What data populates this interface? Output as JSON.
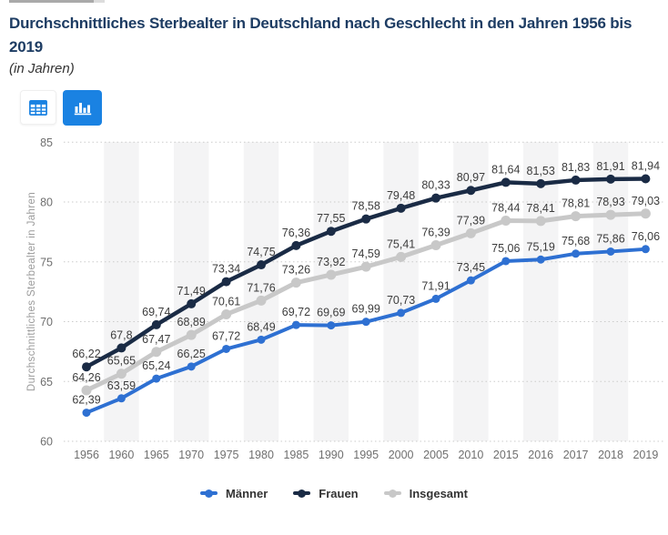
{
  "header": {
    "title": "Durchschnittliches Sterbealter in Deutschland nach Geschlecht in den Jahren 1956 bis 2019",
    "subtitle": "(in Jahren)"
  },
  "toolbar": {
    "table_button": {
      "icon": "table-grid-icon",
      "active": false
    },
    "chart_button": {
      "icon": "bar-chart-icon",
      "active": true
    }
  },
  "colors": {
    "accent_blue": "#1a82e2",
    "title_text": "#1d3c63",
    "grid_line": "#cbcbcb",
    "column_stripe": "#f4f4f5",
    "tick_text": "#6f6f6f",
    "data_label": "#3d3d3d",
    "maenner_blue": "#2e70d2",
    "frauen_navy": "#1a2b45",
    "insgesamt_gray": "#c8c8c8"
  },
  "chart_data": {
    "type": "line",
    "title": "Durchschnittliches Sterbealter in Deutschland nach Geschlecht in den Jahren 1956 bis 2019",
    "xlabel": "",
    "ylabel": "Durchschnittliches Sterbealter in Jahren",
    "ylim": [
      60,
      85
    ],
    "yticks": [
      60,
      65,
      70,
      75,
      80,
      85
    ],
    "grid": "horizontal-dotted",
    "column_banding": "alternating",
    "legend_position": "bottom",
    "decimal_separator": ",",
    "categories": [
      "1956",
      "1960",
      "1965",
      "1970",
      "1975",
      "1980",
      "1985",
      "1990",
      "1995",
      "2000",
      "2005",
      "2010",
      "2015",
      "2016",
      "2017",
      "2018",
      "2019"
    ],
    "series": [
      {
        "name": "Männer",
        "color": "#2e70d2",
        "values": [
          62.39,
          63.59,
          65.24,
          66.25,
          67.72,
          68.49,
          69.72,
          69.69,
          69.99,
          70.73,
          71.91,
          73.45,
          75.06,
          75.19,
          75.68,
          75.86,
          76.06
        ]
      },
      {
        "name": "Frauen",
        "color": "#1a2b45",
        "values": [
          66.22,
          67.8,
          69.74,
          71.49,
          73.34,
          74.75,
          76.36,
          77.55,
          78.58,
          79.48,
          80.33,
          80.97,
          81.64,
          81.53,
          81.83,
          81.91,
          81.94
        ]
      },
      {
        "name": "Insgesamt",
        "color": "#c8c8c8",
        "values": [
          64.26,
          65.65,
          67.47,
          68.89,
          70.61,
          71.76,
          73.26,
          73.92,
          74.59,
          75.41,
          76.39,
          77.39,
          78.44,
          78.41,
          78.81,
          78.93,
          79.03
        ]
      }
    ]
  }
}
